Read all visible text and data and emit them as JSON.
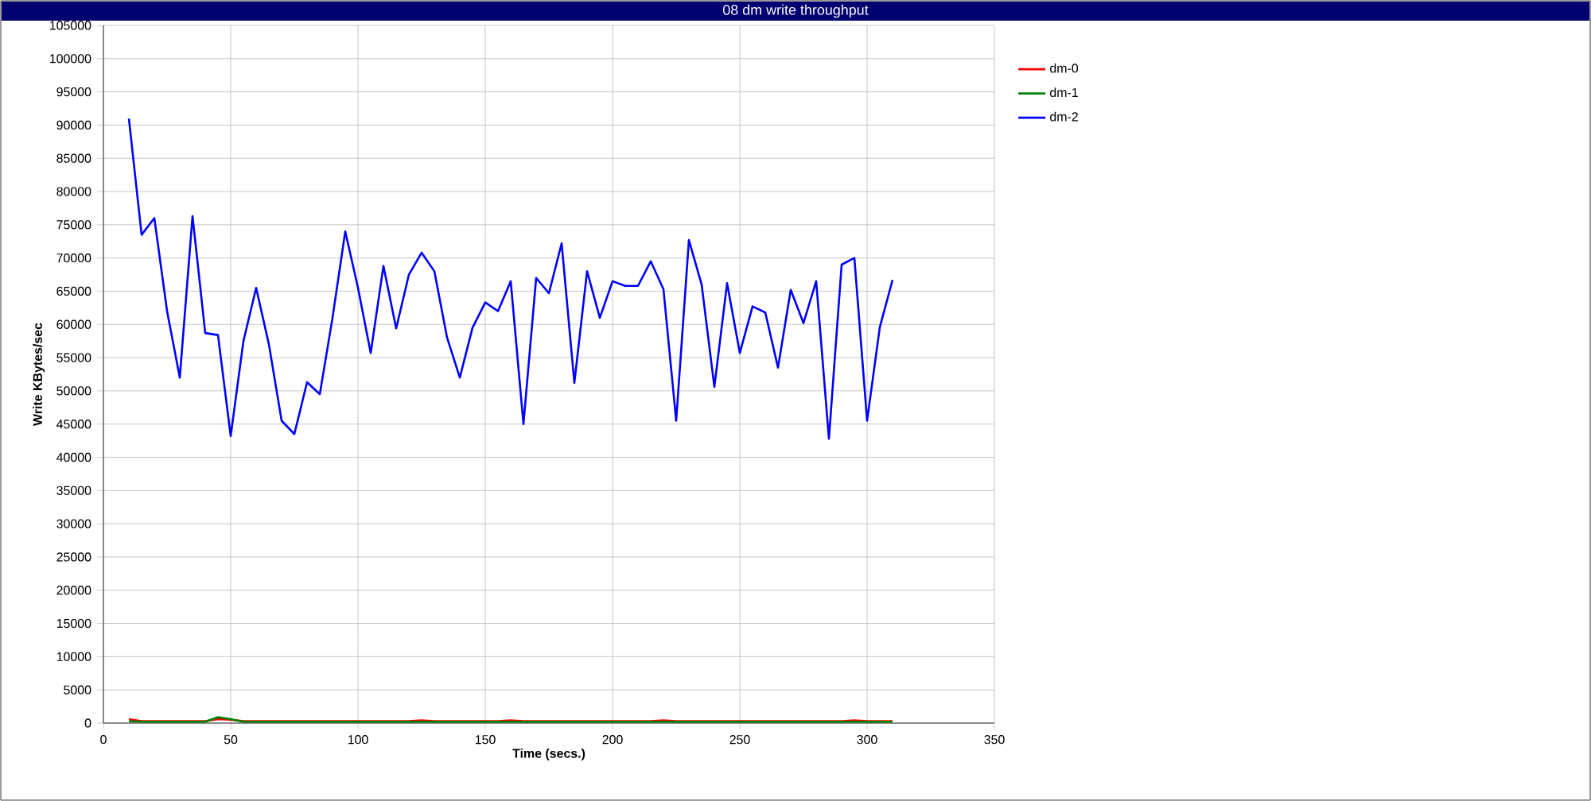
{
  "chart_data": {
    "type": "line",
    "title": "08 dm write throughput",
    "xlabel": "Time (secs.)",
    "ylabel": "Write KBytes/sec",
    "x": [
      10,
      15,
      20,
      25,
      30,
      35,
      40,
      45,
      50,
      55,
      60,
      65,
      70,
      75,
      80,
      85,
      90,
      95,
      100,
      105,
      110,
      115,
      120,
      125,
      130,
      135,
      140,
      145,
      150,
      155,
      160,
      165,
      170,
      175,
      180,
      185,
      190,
      195,
      200,
      205,
      210,
      215,
      220,
      225,
      230,
      235,
      240,
      245,
      250,
      255,
      260,
      265,
      270,
      275,
      280,
      285,
      290,
      295,
      300,
      305,
      310
    ],
    "series": [
      {
        "name": "dm-0",
        "color": "#ff0000",
        "values": [
          600,
          300,
          300,
          300,
          300,
          300,
          300,
          600,
          500,
          300,
          300,
          300,
          300,
          300,
          300,
          300,
          300,
          300,
          300,
          300,
          300,
          300,
          300,
          400,
          300,
          300,
          300,
          300,
          300,
          300,
          400,
          300,
          300,
          300,
          300,
          300,
          300,
          300,
          300,
          300,
          300,
          300,
          400,
          300,
          300,
          300,
          300,
          300,
          300,
          300,
          300,
          300,
          300,
          300,
          300,
          300,
          300,
          400,
          300,
          300,
          300
        ]
      },
      {
        "name": "dm-1",
        "color": "#008000",
        "values": [
          300,
          200,
          200,
          200,
          200,
          200,
          200,
          900,
          600,
          200,
          200,
          200,
          200,
          200,
          200,
          200,
          200,
          200,
          200,
          200,
          200,
          200,
          200,
          200,
          200,
          200,
          200,
          200,
          200,
          200,
          200,
          200,
          200,
          200,
          200,
          200,
          200,
          200,
          200,
          200,
          200,
          200,
          200,
          200,
          200,
          200,
          200,
          200,
          200,
          200,
          200,
          200,
          200,
          200,
          200,
          200,
          200,
          200,
          200,
          200,
          200
        ]
      },
      {
        "name": "dm-2",
        "color": "#0000ff",
        "values": [
          91000,
          73500,
          76000,
          62000,
          52000,
          76300,
          58700,
          58400,
          43200,
          57500,
          65500,
          57000,
          45500,
          43500,
          51300,
          49500,
          61000,
          74000,
          65500,
          55700,
          68800,
          59400,
          67500,
          70800,
          68000,
          58000,
          52000,
          59500,
          63300,
          62000,
          66500,
          45000,
          67000,
          64700,
          72200,
          51200,
          68000,
          61000,
          66500,
          65800,
          65800,
          69500,
          65300,
          45500,
          72700,
          66000,
          50600,
          66200,
          55700,
          62700,
          61800,
          53500,
          65200,
          60200,
          66500,
          42800,
          69000,
          70000,
          45500,
          59600,
          66700
        ]
      }
    ],
    "xlim": [
      0,
      350
    ],
    "xticks": [
      0,
      50,
      100,
      150,
      200,
      250,
      300,
      350
    ],
    "ylim": [
      0,
      105000
    ],
    "yticks": [
      0,
      5000,
      10000,
      15000,
      20000,
      25000,
      30000,
      35000,
      40000,
      45000,
      50000,
      55000,
      60000,
      65000,
      70000,
      75000,
      80000,
      85000,
      90000,
      95000,
      100000,
      105000
    ],
    "grid": true,
    "legend": "top right"
  }
}
